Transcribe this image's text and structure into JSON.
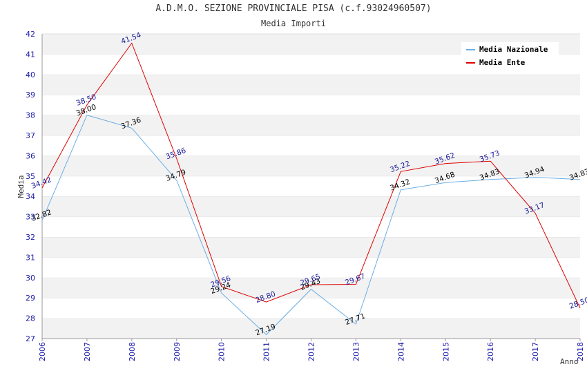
{
  "chart_data": {
    "type": "line",
    "title": "A.D.M.O. SEZIONE PROVINCIALE PISA (c.f.93024960507)",
    "subtitle": "Media Importi",
    "xlabel": "Anno",
    "ylabel": "Media",
    "ylim": [
      27,
      42
    ],
    "y_ticks": [
      "27",
      "28",
      "29",
      "30",
      "31",
      "32",
      "33",
      "34",
      "35",
      "36",
      "37",
      "38",
      "39",
      "40",
      "41",
      "42"
    ],
    "categories": [
      "2006",
      "2007",
      "2008",
      "2009",
      "2010",
      "2011",
      "2012",
      "2013",
      "2014",
      "2015",
      "2016",
      "2017",
      "2018"
    ],
    "grid": true,
    "legend_position": "top-right",
    "series": [
      {
        "name": "Media Nazionale",
        "color": "#6aaee6",
        "label_color": "#000000",
        "values": [
          32.82,
          38.0,
          37.36,
          34.79,
          29.24,
          27.19,
          29.43,
          27.71,
          34.32,
          34.68,
          34.83,
          34.94,
          34.83
        ],
        "labels": [
          "32.82",
          "38.00",
          "37.36",
          "34.79",
          "29.24",
          "27.19",
          "29.43",
          "27.71",
          "34.32",
          "34.68",
          "34.83",
          "34.94",
          "34.83"
        ]
      },
      {
        "name": "Media Ente",
        "color": "#e00000",
        "label_color": "#1a1a99",
        "values": [
          34.42,
          38.5,
          41.54,
          35.86,
          29.56,
          28.8,
          29.65,
          29.67,
          35.22,
          35.62,
          35.73,
          33.17,
          28.5
        ],
        "labels": [
          "34.42",
          "38.50",
          "41.54",
          "35.86",
          "29.56",
          "28.80",
          "29.65",
          "29.67",
          "35.22",
          "35.62",
          "35.73",
          "33.17",
          "28.50"
        ]
      }
    ]
  }
}
